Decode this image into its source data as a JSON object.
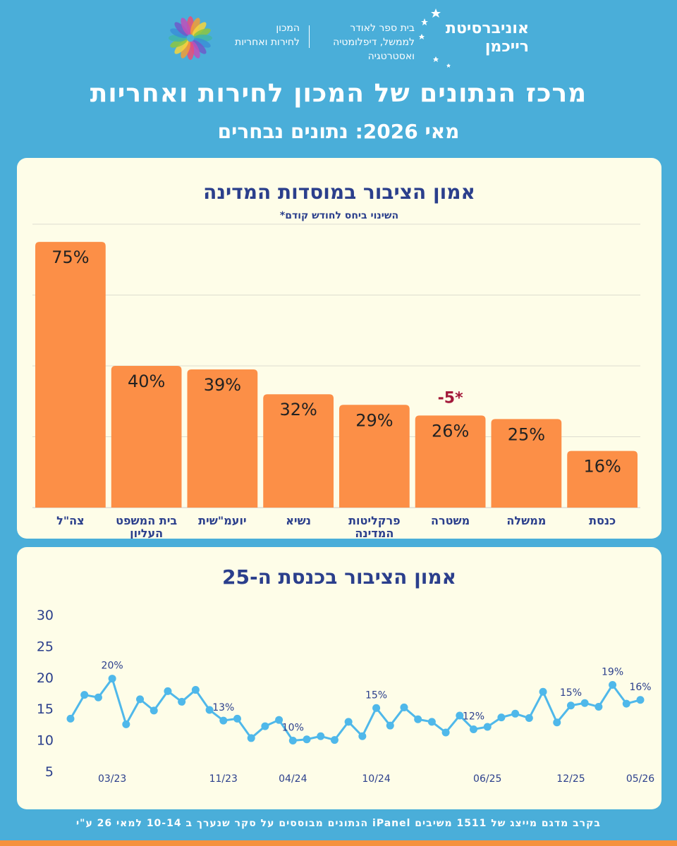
{
  "header": {
    "university_line1": "אוניברסיטת",
    "university_line2": "רייכמן",
    "school_line1": "בית ספר לאודר",
    "school_line2": "לממשל, דיפלומטיה",
    "school_line3": "ואסטרטגיה",
    "institute_line1": "המכון",
    "institute_line2": "לחירות ואחריות"
  },
  "title": "מרכז הנתונים של המכון לחירות ואחריות",
  "subtitle": "מאי 2026: נתונים נבחרים",
  "footer_note": "הנתונים מבוססים על סקר שנערך ב 10-14 למאי 26 ע\"י iPanel בקרב מדגם מייצג של 1511 משיבים",
  "colors": {
    "background": "#4aaed9",
    "bar": "#fc8f47",
    "line": "#4fb8ea",
    "title_text": "#2b3f8c",
    "change_note": "#a3193a"
  },
  "chart_data": [
    {
      "type": "bar",
      "title": "אמון הציבור במוסדות המדינה",
      "subtitle": "*השינוי ביחס לחודש קודם",
      "categories": [
        [
          "צה\"ל"
        ],
        [
          "בית המשפט",
          "העליון"
        ],
        [
          "יועמ\"שית"
        ],
        [
          "נשיא"
        ],
        [
          "פרקליטות",
          "המדינה"
        ],
        [
          "משטרה"
        ],
        [
          "ממשלה"
        ],
        [
          "כנסת"
        ]
      ],
      "values": [
        75,
        40,
        39,
        32,
        29,
        26,
        25,
        16
      ],
      "value_labels": [
        "75%",
        "40%",
        "39%",
        "32%",
        "29%",
        "26%",
        "25%",
        "16%"
      ],
      "annotations": [
        {
          "category_index": 5,
          "text": "-5*"
        }
      ],
      "ylim": [
        0,
        80
      ],
      "grid": true
    },
    {
      "type": "line",
      "title": "אמון הציבור בכנסת ה-25",
      "ylim": [
        5,
        30
      ],
      "yticks": [
        5,
        10,
        15,
        20,
        25,
        30
      ],
      "x_tick_labels": [
        {
          "index": 3,
          "label": "03/23"
        },
        {
          "index": 11,
          "label": "11/23"
        },
        {
          "index": 16,
          "label": "04/24"
        },
        {
          "index": 22,
          "label": "10/24"
        },
        {
          "index": 30,
          "label": "06/25"
        },
        {
          "index": 36,
          "label": "12/25"
        },
        {
          "index": 41,
          "label": "05/26"
        }
      ],
      "values": [
        13.4,
        17.2,
        16.8,
        19.8,
        12.5,
        16.5,
        14.7,
        17.8,
        16.1,
        18.0,
        14.8,
        13.1,
        13.4,
        10.3,
        12.2,
        13.2,
        9.9,
        10.1,
        10.6,
        10.0,
        12.9,
        10.6,
        15.1,
        12.3,
        15.2,
        13.3,
        12.9,
        11.2,
        13.9,
        11.7,
        12.1,
        13.6,
        14.2,
        13.5,
        17.7,
        12.8,
        15.5,
        15.9,
        15.3,
        18.8,
        15.8,
        16.4
      ],
      "point_labels": [
        {
          "index": 3,
          "text": "20%"
        },
        {
          "index": 11,
          "text": "13%"
        },
        {
          "index": 16,
          "text": "10%"
        },
        {
          "index": 22,
          "text": "15%"
        },
        {
          "index": 29,
          "text": "12%"
        },
        {
          "index": 36,
          "text": "15%"
        },
        {
          "index": 39,
          "text": "19%"
        },
        {
          "index": 41,
          "text": "16%"
        }
      ],
      "grid": false
    }
  ]
}
